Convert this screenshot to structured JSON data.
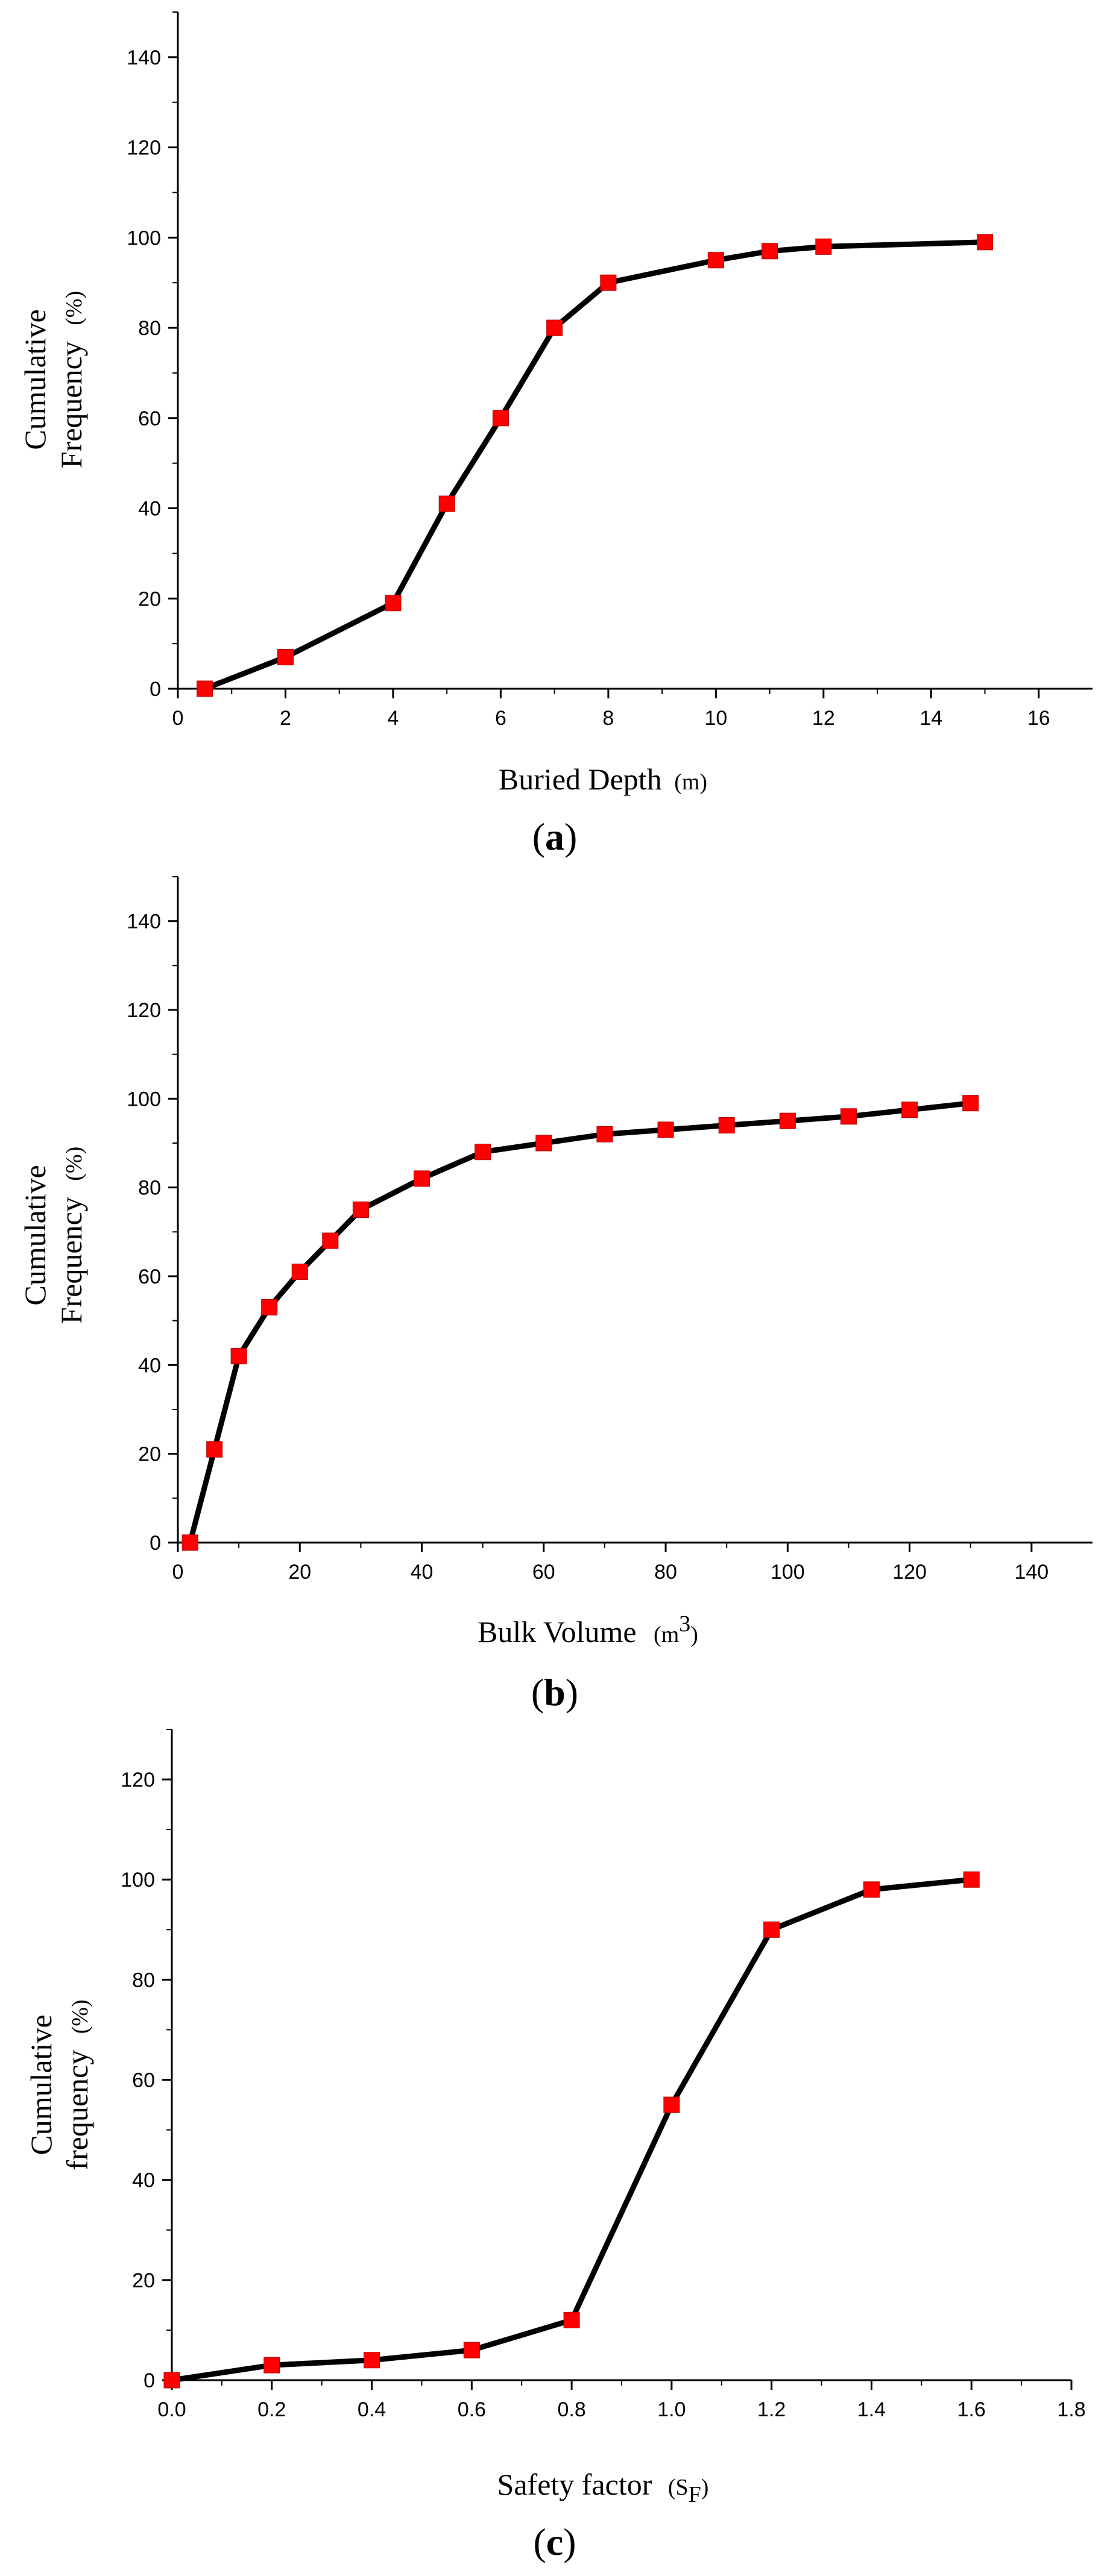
{
  "colors": {
    "line": "#000000",
    "marker": "#ff0000",
    "marker_edge": "#b00000",
    "axis": "#000000"
  },
  "chart_data": [
    {
      "type": "line",
      "panel": "a",
      "title": "",
      "xlabel": "Buried Depth",
      "xlabel_unit": "(m)",
      "ylabel_line1": "Cumulative",
      "ylabel_line2": "Frequency",
      "ylabel_unit": "(%)",
      "xlim": [
        0,
        17
      ],
      "ylim": [
        0,
        150
      ],
      "xticks": [
        0,
        2,
        4,
        6,
        8,
        10,
        12,
        14,
        16
      ],
      "yticks": [
        0,
        20,
        40,
        60,
        80,
        100,
        120,
        140
      ],
      "xtick_labels": [
        "0",
        "2",
        "4",
        "6",
        "8",
        "10",
        "12",
        "14",
        "16"
      ],
      "ytick_labels": [
        "0",
        "20",
        "40",
        "60",
        "80",
        "100",
        "120",
        "140"
      ],
      "grid": false,
      "series": [
        {
          "name": "Cumulative Frequency",
          "x": [
            0.5,
            2,
            4,
            5,
            6,
            7,
            8,
            10,
            11,
            12,
            15
          ],
          "y": [
            0,
            7,
            19,
            41,
            60,
            80,
            90,
            95,
            97,
            98,
            99
          ]
        }
      ]
    },
    {
      "type": "line",
      "panel": "b",
      "title": "",
      "xlabel": "Bulk Volume",
      "xlabel_unit": "(m",
      "xlabel_unit_sup": "3",
      "xlabel_unit_close": ")",
      "ylabel_line1": "Cumulative",
      "ylabel_line2": "Frequency",
      "ylabel_unit": "(%)",
      "xlim": [
        0,
        150
      ],
      "ylim": [
        0,
        150
      ],
      "xticks": [
        0,
        20,
        40,
        60,
        80,
        100,
        120,
        140
      ],
      "yticks": [
        0,
        20,
        40,
        60,
        80,
        100,
        120,
        140
      ],
      "xtick_labels": [
        "0",
        "20",
        "40",
        "60",
        "80",
        "100",
        "120",
        "140"
      ],
      "ytick_labels": [
        "0",
        "20",
        "40",
        "60",
        "80",
        "100",
        "120",
        "140"
      ],
      "grid": false,
      "series": [
        {
          "name": "Cumulative Frequency",
          "x": [
            2,
            6,
            10,
            15,
            20,
            25,
            30,
            40,
            50,
            60,
            70,
            80,
            90,
            100,
            110,
            120,
            130
          ],
          "y": [
            0,
            21,
            42,
            53,
            61,
            68,
            75,
            82,
            88,
            90,
            92,
            93,
            94,
            95,
            96,
            97.5,
            99
          ]
        }
      ]
    },
    {
      "type": "line",
      "panel": "c",
      "title": "",
      "xlabel": "Safety factor",
      "xlabel_unit": "(S",
      "xlabel_unit_sub": "F",
      "xlabel_unit_close": ")",
      "ylabel_line1": "Cumulative",
      "ylabel_line2": "frequency",
      "ylabel_unit": "(%)",
      "xlim": [
        0,
        1.8
      ],
      "ylim": [
        0,
        130
      ],
      "xticks": [
        0,
        0.2,
        0.4,
        0.6,
        0.8,
        1.0,
        1.2,
        1.4,
        1.6,
        1.8
      ],
      "yticks": [
        0,
        20,
        40,
        60,
        80,
        100,
        120
      ],
      "xtick_labels": [
        "0.0",
        "0.2",
        "0.4",
        "0.6",
        "0.8",
        "1.0",
        "1.2",
        "1.4",
        "1.6",
        "1.8"
      ],
      "ytick_labels": [
        "0",
        "20",
        "40",
        "60",
        "80",
        "100",
        "120"
      ],
      "grid": false,
      "series": [
        {
          "name": "Cumulative frequency",
          "x": [
            0,
            0.2,
            0.4,
            0.6,
            0.8,
            1.0,
            1.2,
            1.4,
            1.6
          ],
          "y": [
            0,
            3,
            4,
            6,
            12,
            55,
            90,
            98,
            100
          ]
        }
      ]
    }
  ]
}
